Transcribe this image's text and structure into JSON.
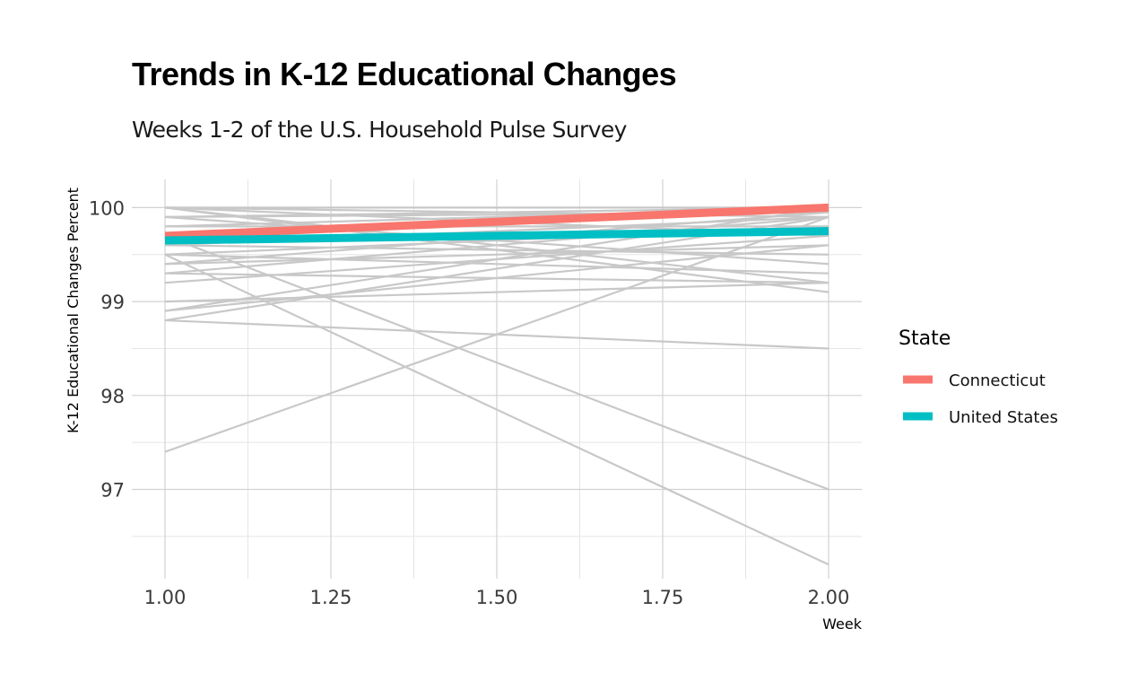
{
  "chart_data": {
    "type": "line",
    "title": "Trends in K-12 Educational Changes",
    "subtitle": "Weeks 1-2 of the U.S. Household Pulse Survey",
    "xlabel": "Week",
    "ylabel": "K-12 Educational Changes Percent",
    "x": [
      1,
      2
    ],
    "xlim": [
      0.95,
      2.05
    ],
    "ylim": [
      96.05,
      100.3
    ],
    "x_ticks": [
      "1.00",
      "1.25",
      "1.50",
      "1.75",
      "2.00"
    ],
    "y_ticks": [
      "97",
      "98",
      "99",
      "100"
    ],
    "grid": true,
    "legend": {
      "title": "State",
      "position": "right",
      "entries": [
        {
          "label": "Connecticut",
          "color": "#F8766D"
        },
        {
          "label": "United States",
          "color": "#00BFC4"
        }
      ]
    },
    "highlight_series": [
      {
        "name": "Connecticut",
        "values": [
          99.7,
          100.0
        ],
        "color": "#F8766D"
      },
      {
        "name": "United States",
        "values": [
          99.65,
          99.75
        ],
        "color": "#00BFC4"
      }
    ],
    "background_series_color": "#c8c8c8",
    "background_series": [
      [
        100.0,
        100.0
      ],
      [
        100.0,
        99.9
      ],
      [
        100.0,
        99.7
      ],
      [
        100.0,
        99.2
      ],
      [
        99.9,
        100.0
      ],
      [
        99.9,
        99.95
      ],
      [
        99.8,
        100.0
      ],
      [
        99.8,
        99.8
      ],
      [
        99.7,
        97.0
      ],
      [
        99.6,
        99.9
      ],
      [
        99.6,
        99.5
      ],
      [
        99.5,
        96.2
      ],
      [
        99.5,
        99.8
      ],
      [
        99.5,
        99.3
      ],
      [
        99.4,
        99.95
      ],
      [
        99.4,
        99.6
      ],
      [
        99.3,
        99.9
      ],
      [
        99.3,
        99.2
      ],
      [
        99.2,
        99.7
      ],
      [
        99.0,
        99.2
      ],
      [
        98.9,
        100.0
      ],
      [
        98.9,
        99.6
      ],
      [
        98.8,
        99.9
      ],
      [
        98.8,
        98.5
      ],
      [
        97.4,
        99.9
      ],
      [
        100.0,
        99.1
      ],
      [
        99.9,
        99.4
      ],
      [
        99.7,
        100.0
      ]
    ]
  }
}
